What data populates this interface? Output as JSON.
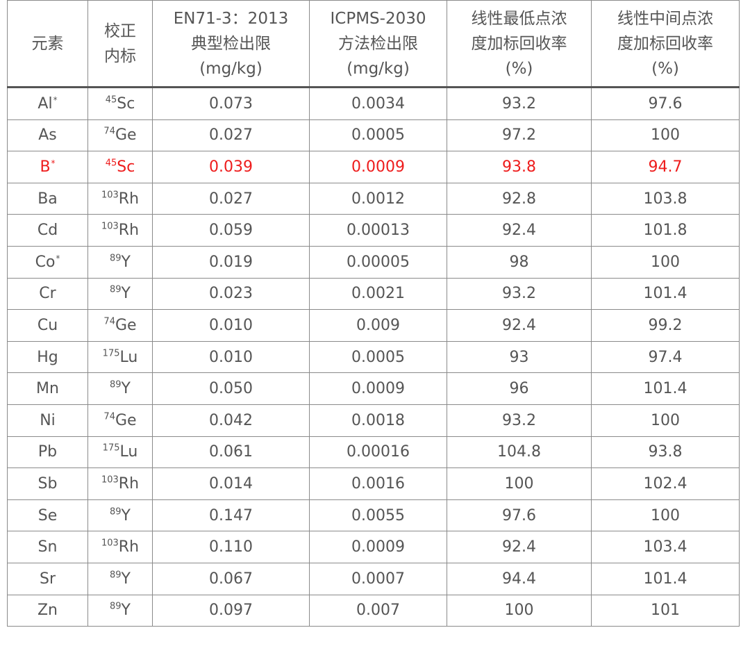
{
  "table": {
    "headers": [
      [
        "元素"
      ],
      [
        "校正",
        "内标"
      ],
      [
        "EN71-3：2013",
        "典型检出限",
        "(mg/kg)"
      ],
      [
        "ICPMS-2030",
        "方法检出限",
        "(mg/kg)"
      ],
      [
        "线性最低点浓",
        "度加标回收率",
        "(%)"
      ],
      [
        "线性中间点浓",
        "度加标回收率",
        "(%)"
      ]
    ],
    "rows": [
      {
        "element": "Al",
        "mark": "*",
        "is_mass": "45",
        "is_el": "Sc",
        "en71": "0.073",
        "icpms": "0.0034",
        "low": "93.2",
        "mid": "97.6",
        "highlight": false
      },
      {
        "element": "As",
        "mark": "",
        "is_mass": "74",
        "is_el": "Ge",
        "en71": "0.027",
        "icpms": "0.0005",
        "low": "97.2",
        "mid": "100",
        "highlight": false
      },
      {
        "element": "B",
        "mark": "*",
        "is_mass": "45",
        "is_el": "Sc",
        "en71": "0.039",
        "icpms": "0.0009",
        "low": "93.8",
        "mid": "94.7",
        "highlight": true
      },
      {
        "element": "Ba",
        "mark": "",
        "is_mass": "103",
        "is_el": "Rh",
        "en71": "0.027",
        "icpms": "0.0012",
        "low": "92.8",
        "mid": "103.8",
        "highlight": false
      },
      {
        "element": "Cd",
        "mark": "",
        "is_mass": "103",
        "is_el": "Rh",
        "en71": "0.059",
        "icpms": "0.00013",
        "low": "92.4",
        "mid": "101.8",
        "highlight": false
      },
      {
        "element": "Co",
        "mark": "*",
        "is_mass": "89",
        "is_el": "Y",
        "en71": "0.019",
        "icpms": "0.00005",
        "low": "98",
        "mid": "100",
        "highlight": false
      },
      {
        "element": "Cr",
        "mark": "",
        "is_mass": "89",
        "is_el": "Y",
        "en71": "0.023",
        "icpms": "0.0021",
        "low": "93.2",
        "mid": "101.4",
        "highlight": false
      },
      {
        "element": "Cu",
        "mark": "",
        "is_mass": "74",
        "is_el": "Ge",
        "en71": "0.010",
        "icpms": "0.009",
        "low": "92.4",
        "mid": "99.2",
        "highlight": false
      },
      {
        "element": "Hg",
        "mark": "",
        "is_mass": "175",
        "is_el": "Lu",
        "en71": "0.010",
        "icpms": "0.0005",
        "low": "93",
        "mid": "97.4",
        "highlight": false
      },
      {
        "element": "Mn",
        "mark": "",
        "is_mass": "89",
        "is_el": "Y",
        "en71": "0.050",
        "icpms": "0.0009",
        "low": "96",
        "mid": "101.4",
        "highlight": false
      },
      {
        "element": "Ni",
        "mark": "",
        "is_mass": "74",
        "is_el": "Ge",
        "en71": "0.042",
        "icpms": "0.0018",
        "low": "93.2",
        "mid": "100",
        "highlight": false
      },
      {
        "element": "Pb",
        "mark": "",
        "is_mass": "175",
        "is_el": "Lu",
        "en71": "0.061",
        "icpms": "0.00016",
        "low": "104.8",
        "mid": "93.8",
        "highlight": false
      },
      {
        "element": "Sb",
        "mark": "",
        "is_mass": "103",
        "is_el": "Rh",
        "en71": "0.014",
        "icpms": "0.0016",
        "low": "100",
        "mid": "102.4",
        "highlight": false
      },
      {
        "element": "Se",
        "mark": "",
        "is_mass": "89",
        "is_el": "Y",
        "en71": "0.147",
        "icpms": "0.0055",
        "low": "97.6",
        "mid": "100",
        "highlight": false
      },
      {
        "element": "Sn",
        "mark": "",
        "is_mass": "103",
        "is_el": "Rh",
        "en71": "0.110",
        "icpms": "0.0009",
        "low": "92.4",
        "mid": "103.4",
        "highlight": false
      },
      {
        "element": "Sr",
        "mark": "",
        "is_mass": "89",
        "is_el": "Y",
        "en71": "0.067",
        "icpms": "0.0007",
        "low": "94.4",
        "mid": "101.4",
        "highlight": false
      },
      {
        "element": "Zn",
        "mark": "",
        "is_mass": "89",
        "is_el": "Y",
        "en71": "0.097",
        "icpms": "0.007",
        "low": "100",
        "mid": "101",
        "highlight": false
      }
    ]
  },
  "colors": {
    "text": "#555555",
    "highlight": "#ee1c1c",
    "border": "#8a8a8a"
  }
}
